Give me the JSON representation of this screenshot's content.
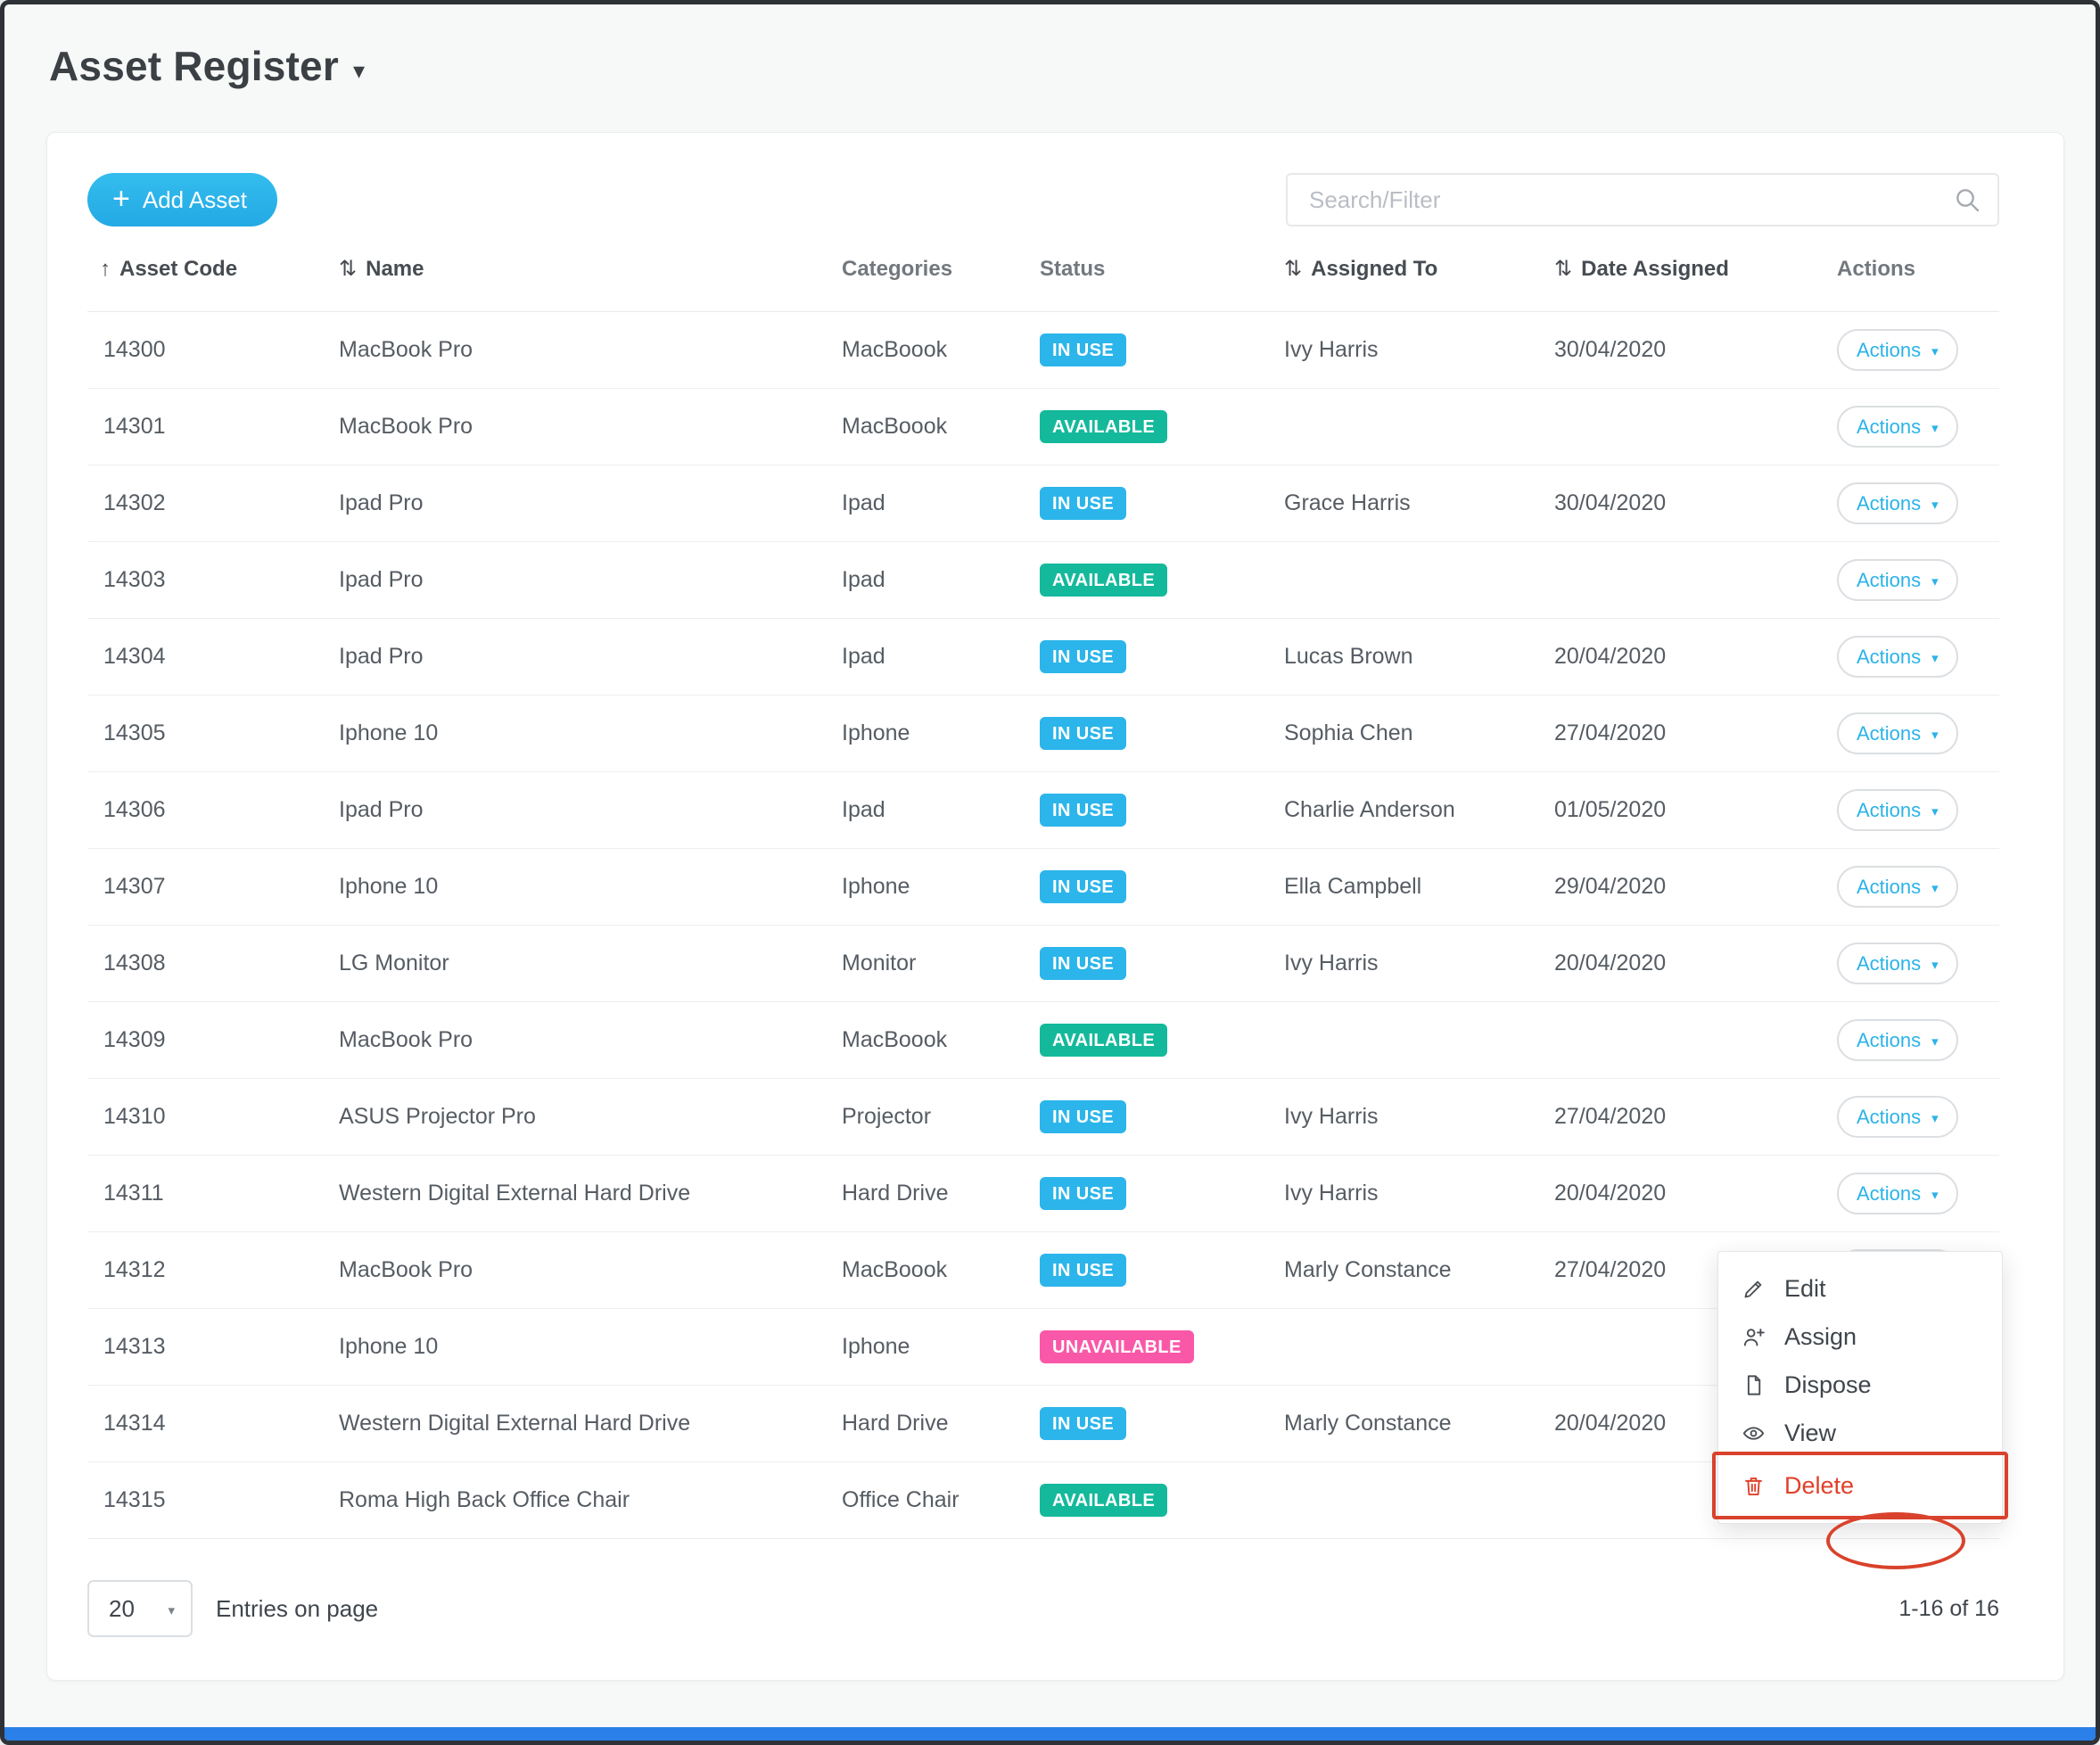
{
  "page": {
    "title": "Asset Register"
  },
  "toolbar": {
    "add_asset_label": "Add Asset",
    "search_placeholder": "Search/Filter"
  },
  "colors": {
    "accent": "#2cb3e8",
    "in_use_badge": "#2cb5ea",
    "available_badge": "#14b99b",
    "unavailable_badge": "#f958a8",
    "annotation_red": "#d9422c",
    "danger_text": "#e0402a"
  },
  "table": {
    "actions_label": "Actions",
    "columns": [
      {
        "label": "Asset Code",
        "sort": "asc"
      },
      {
        "label": "Name",
        "sort": "both"
      },
      {
        "label": "Categories",
        "sort": null
      },
      {
        "label": "Status",
        "sort": null
      },
      {
        "label": "Assigned To",
        "sort": "both"
      },
      {
        "label": "Date Assigned",
        "sort": "both"
      },
      {
        "label": "Actions",
        "sort": null
      }
    ],
    "rows": [
      {
        "code": "14300",
        "name": "MacBook Pro",
        "category": "MacBoook",
        "status": "IN USE",
        "status_type": "in-use",
        "assigned": "Ivy Harris",
        "date": "30/04/2020"
      },
      {
        "code": "14301",
        "name": "MacBook Pro",
        "category": "MacBoook",
        "status": "AVAILABLE",
        "status_type": "available",
        "assigned": "",
        "date": ""
      },
      {
        "code": "14302",
        "name": "Ipad Pro",
        "category": "Ipad",
        "status": "IN USE",
        "status_type": "in-use",
        "assigned": "Grace Harris",
        "date": "30/04/2020"
      },
      {
        "code": "14303",
        "name": "Ipad Pro",
        "category": "Ipad",
        "status": "AVAILABLE",
        "status_type": "available",
        "assigned": "",
        "date": ""
      },
      {
        "code": "14304",
        "name": "Ipad Pro",
        "category": "Ipad",
        "status": "IN USE",
        "status_type": "in-use",
        "assigned": "Lucas Brown",
        "date": "20/04/2020"
      },
      {
        "code": "14305",
        "name": "Iphone 10",
        "category": "Iphone",
        "status": "IN USE",
        "status_type": "in-use",
        "assigned": "Sophia Chen",
        "date": "27/04/2020"
      },
      {
        "code": "14306",
        "name": "Ipad Pro",
        "category": "Ipad",
        "status": "IN USE",
        "status_type": "in-use",
        "assigned": "Charlie Anderson",
        "date": "01/05/2020"
      },
      {
        "code": "14307",
        "name": "Iphone 10",
        "category": "Iphone",
        "status": "IN USE",
        "status_type": "in-use",
        "assigned": "Ella Campbell",
        "date": "29/04/2020"
      },
      {
        "code": "14308",
        "name": "LG Monitor",
        "category": "Monitor",
        "status": "IN USE",
        "status_type": "in-use",
        "assigned": "Ivy Harris",
        "date": "20/04/2020"
      },
      {
        "code": "14309",
        "name": "MacBook Pro",
        "category": "MacBoook",
        "status": "AVAILABLE",
        "status_type": "available",
        "assigned": "",
        "date": ""
      },
      {
        "code": "14310",
        "name": "ASUS Projector Pro",
        "category": "Projector",
        "status": "IN USE",
        "status_type": "in-use",
        "assigned": "Ivy Harris",
        "date": "27/04/2020"
      },
      {
        "code": "14311",
        "name": "Western Digital External Hard Drive",
        "category": "Hard Drive",
        "status": "IN USE",
        "status_type": "in-use",
        "assigned": "Ivy Harris",
        "date": "20/04/2020"
      },
      {
        "code": "14312",
        "name": "MacBook Pro",
        "category": "MacBoook",
        "status": "IN USE",
        "status_type": "in-use",
        "assigned": "Marly Constance",
        "date": "27/04/2020"
      },
      {
        "code": "14313",
        "name": "Iphone 10",
        "category": "Iphone",
        "status": "UNAVAILABLE",
        "status_type": "unavailable",
        "assigned": "",
        "date": ""
      },
      {
        "code": "14314",
        "name": "Western Digital External Hard Drive",
        "category": "Hard Drive",
        "status": "IN USE",
        "status_type": "in-use",
        "assigned": "Marly Constance",
        "date": "20/04/2020"
      },
      {
        "code": "14315",
        "name": "Roma High Back Office Chair",
        "category": "Office Chair",
        "status": "AVAILABLE",
        "status_type": "available",
        "assigned": "",
        "date": ""
      }
    ]
  },
  "menu": {
    "items": [
      {
        "label": "Edit",
        "icon": "edit",
        "danger": false
      },
      {
        "label": "Assign",
        "icon": "assign",
        "danger": false
      },
      {
        "label": "Dispose",
        "icon": "dispose",
        "danger": false
      },
      {
        "label": "View",
        "icon": "view",
        "danger": false
      },
      {
        "label": "Delete",
        "icon": "delete",
        "danger": true
      }
    ]
  },
  "footer": {
    "entries_per_page": "20",
    "entries_label": "Entries on page",
    "range": "1-16 of 16"
  }
}
